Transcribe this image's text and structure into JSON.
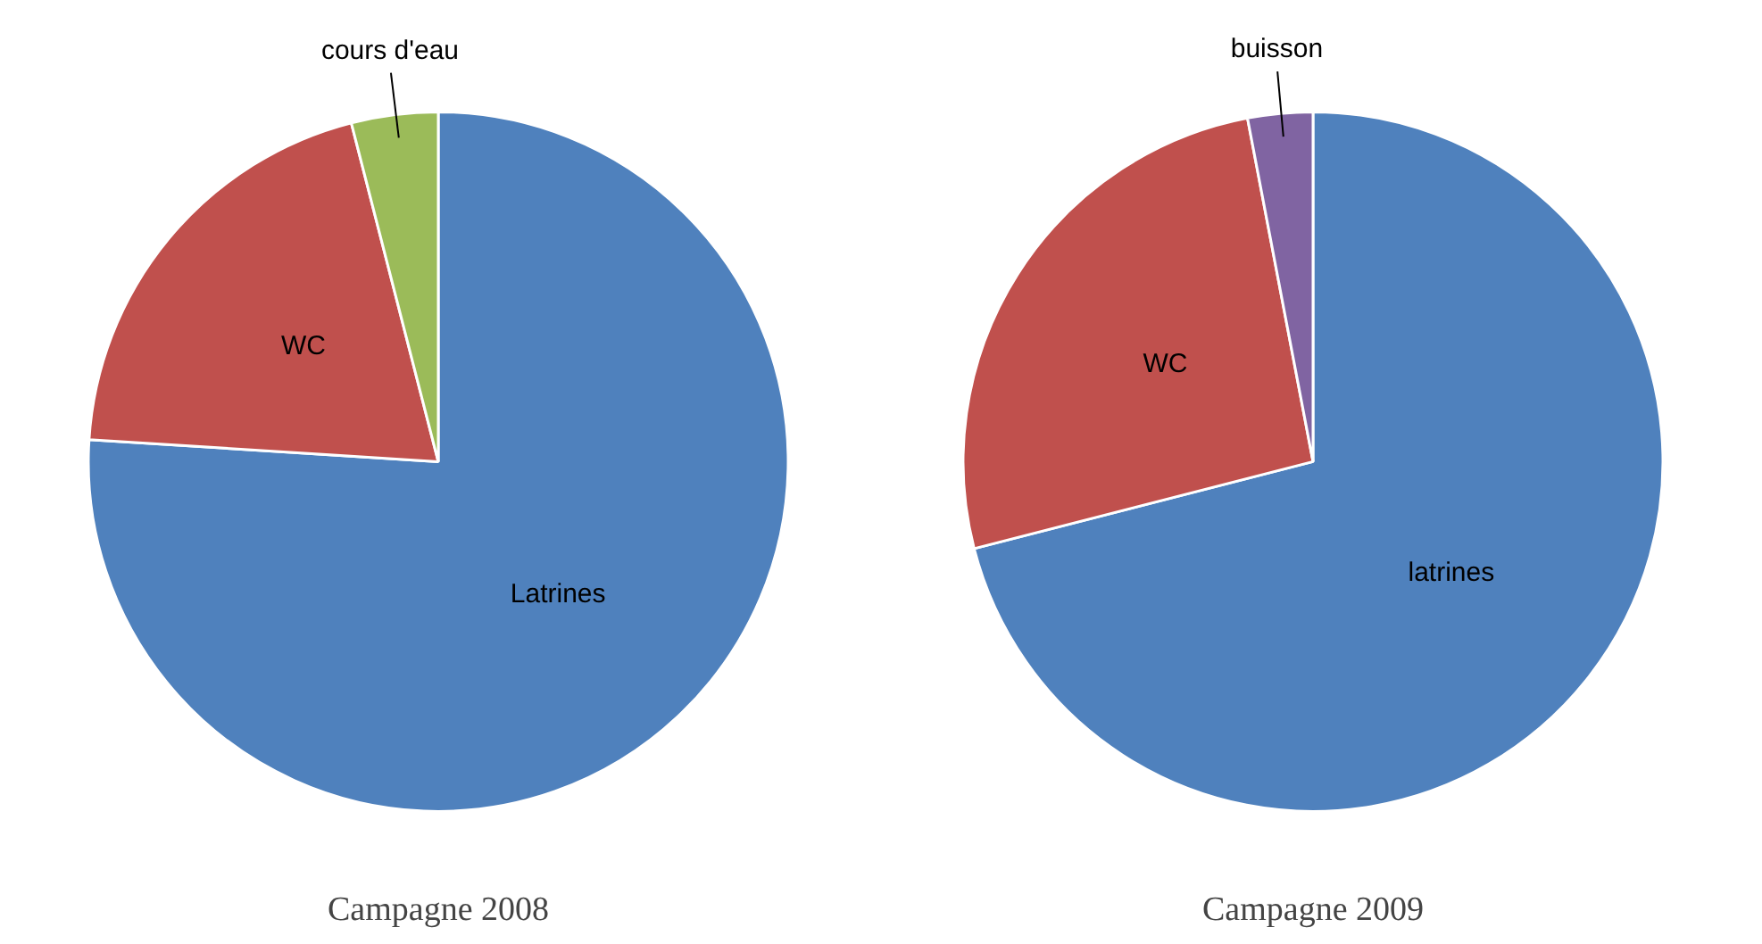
{
  "chart_data": [
    {
      "type": "pie",
      "title": "Campagne 2008",
      "categories": [
        "Latrines",
        "WC",
        "cours d'eau"
      ],
      "values": [
        76,
        20,
        4
      ],
      "colors": [
        "#4f81bd",
        "#c0504d",
        "#9bbb59"
      ]
    },
    {
      "type": "pie",
      "title": "Campagne 2009",
      "categories": [
        "latrines",
        "WC",
        "buisson"
      ],
      "values": [
        71,
        26,
        3
      ],
      "colors": [
        "#4f81bd",
        "#c0504d",
        "#8064a2"
      ]
    }
  ]
}
